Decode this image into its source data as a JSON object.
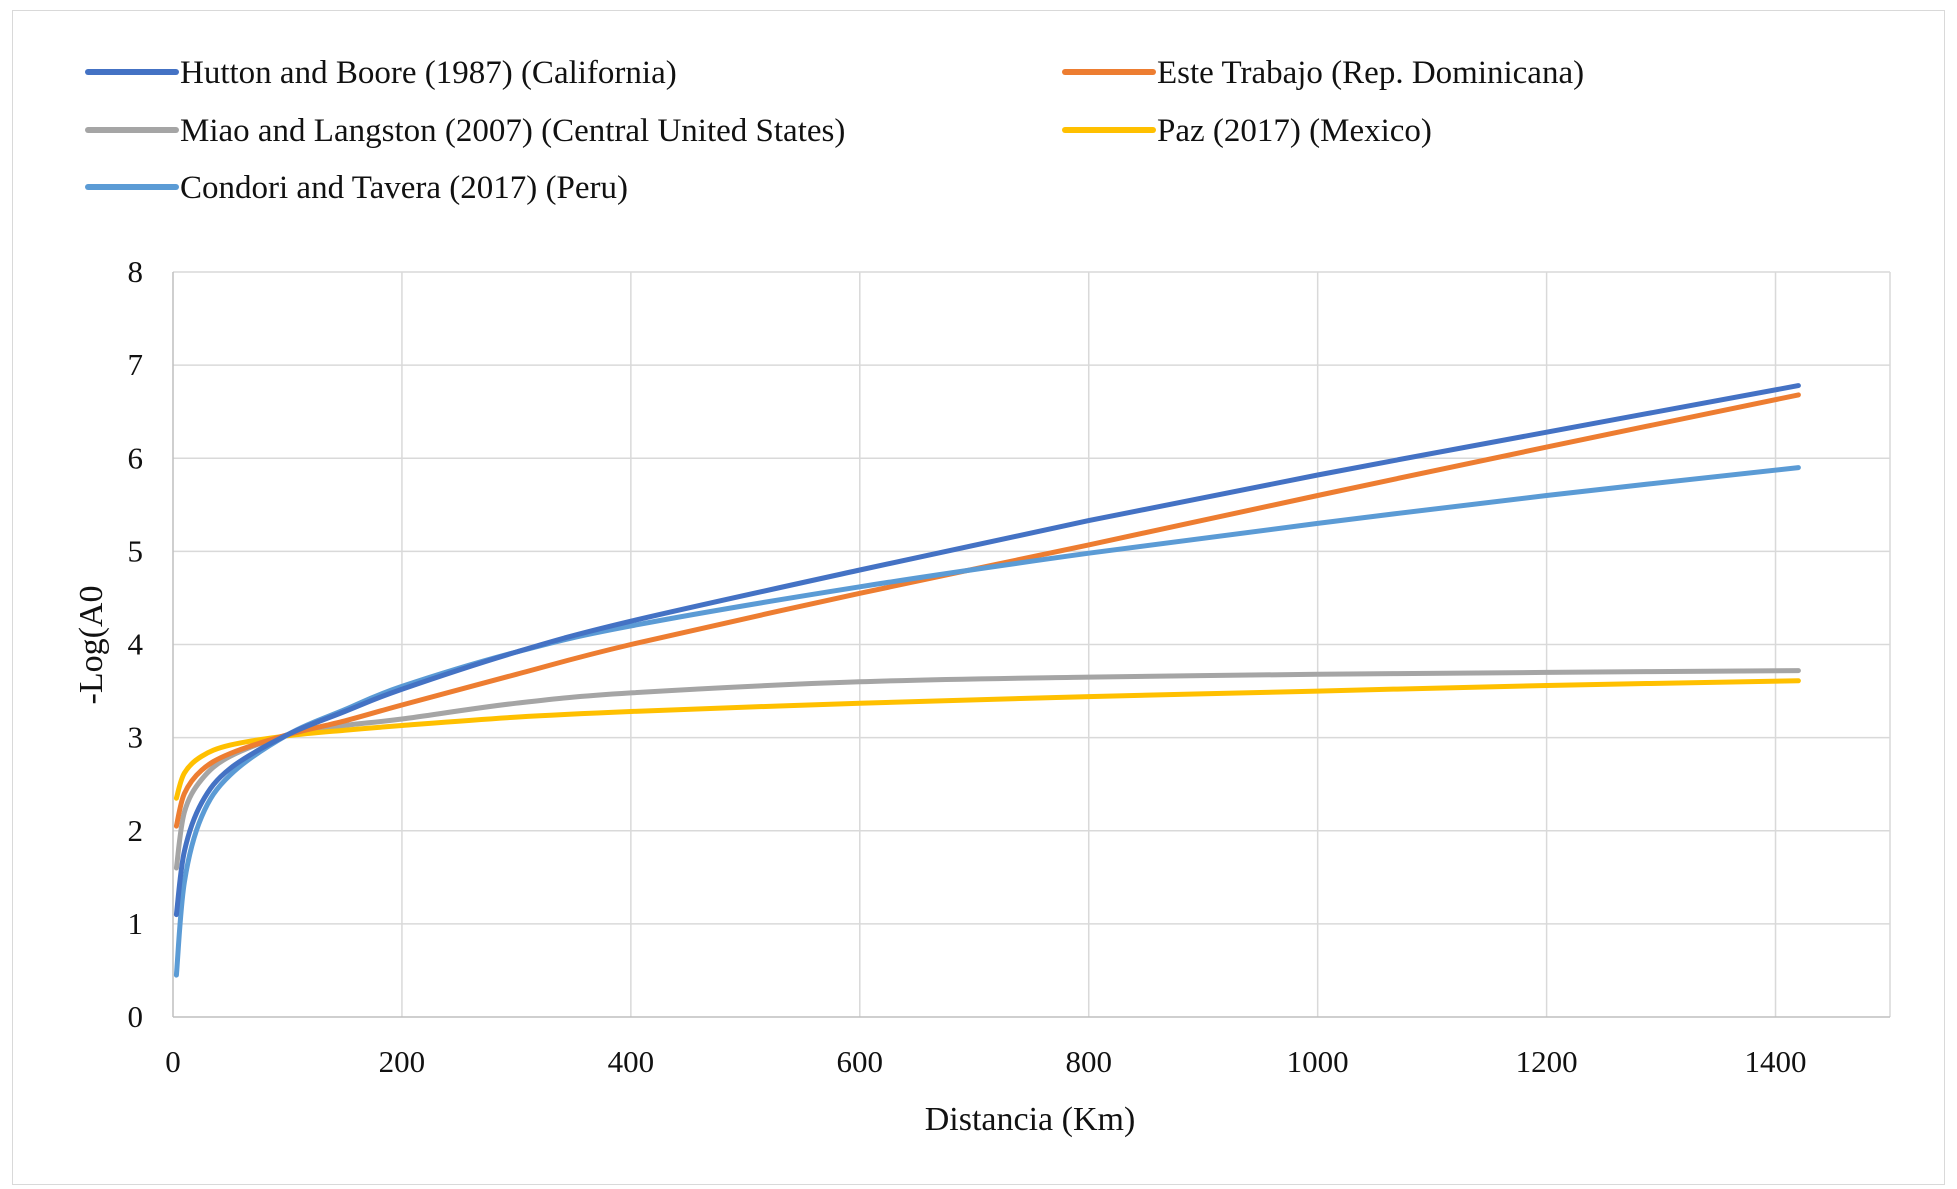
{
  "chart_data": {
    "type": "line",
    "title": "",
    "xlabel": "Distancia (Km)",
    "ylabel": "-Log(A0",
    "xlim": [
      0,
      1500
    ],
    "ylim": [
      0,
      8
    ],
    "x_ticks": [
      "0",
      "200",
      "400",
      "600",
      "800",
      "1000",
      "1200",
      "1400"
    ],
    "y_ticks": [
      "0",
      "1",
      "2",
      "3",
      "4",
      "5",
      "6",
      "7",
      "8"
    ],
    "grid": true,
    "legend_position": "top",
    "series": [
      {
        "name": "Hutton and Boore (1987) (California)",
        "color": "#4472c4",
        "x": [
          3,
          10,
          25,
          50,
          100,
          150,
          200,
          300,
          400,
          600,
          800,
          1000,
          1200,
          1420
        ],
        "y": [
          1.1,
          1.78,
          2.3,
          2.67,
          3.03,
          3.28,
          3.52,
          3.92,
          4.25,
          4.8,
          5.33,
          5.82,
          6.28,
          6.78
        ]
      },
      {
        "name": "Este Trabajo (Rep. Dominicana)",
        "color": "#ed7d31",
        "x": [
          3,
          10,
          25,
          50,
          100,
          150,
          200,
          300,
          400,
          600,
          800,
          1000,
          1200,
          1420
        ],
        "y": [
          2.05,
          2.4,
          2.65,
          2.83,
          3.03,
          3.18,
          3.35,
          3.68,
          4.0,
          4.55,
          5.07,
          5.6,
          6.12,
          6.68
        ]
      },
      {
        "name": "Miao and Langston (2007) (Central United States)",
        "color": "#a5a5a5",
        "x": [
          3,
          10,
          25,
          50,
          100,
          150,
          200,
          300,
          400,
          600,
          800,
          1000,
          1200,
          1420
        ],
        "y": [
          1.6,
          2.2,
          2.55,
          2.8,
          3.03,
          3.13,
          3.2,
          3.37,
          3.48,
          3.6,
          3.65,
          3.68,
          3.7,
          3.72
        ]
      },
      {
        "name": "Paz  (2017) (Mexico)",
        "color": "#ffc000",
        "x": [
          3,
          10,
          25,
          50,
          100,
          150,
          200,
          300,
          400,
          600,
          800,
          1000,
          1200,
          1420
        ],
        "y": [
          2.35,
          2.62,
          2.8,
          2.92,
          3.02,
          3.08,
          3.13,
          3.22,
          3.28,
          3.37,
          3.44,
          3.5,
          3.56,
          3.61
        ]
      },
      {
        "name": "Condori and Tavera (2017) (Peru)",
        "color": "#5b9bd5",
        "x": [
          3,
          10,
          25,
          50,
          100,
          150,
          200,
          300,
          400,
          600,
          800,
          1000,
          1200,
          1420
        ],
        "y": [
          0.45,
          1.45,
          2.15,
          2.6,
          3.03,
          3.3,
          3.55,
          3.92,
          4.2,
          4.62,
          4.98,
          5.3,
          5.6,
          5.9
        ]
      }
    ]
  }
}
